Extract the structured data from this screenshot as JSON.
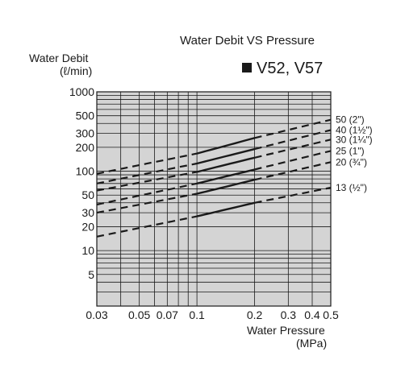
{
  "header": {
    "title": "Water Debit VS Pressure",
    "subtitle": "V52, V57"
  },
  "axes": {
    "ylabel_line1": "Water Debit",
    "ylabel_line2": "(ℓ/min)",
    "xlabel_line1": "Water Pressure",
    "xlabel_line2": "(MPa)"
  },
  "chart_data": {
    "type": "line",
    "title": "Water Debit VS Pressure",
    "subtitle": "V52, V57",
    "xlabel": "Water Pressure (MPa)",
    "ylabel": "Water Debit (ℓ/min)",
    "xscale": "log",
    "yscale": "log",
    "xlim": [
      0.03,
      0.5
    ],
    "ylim": [
      2,
      1000
    ],
    "grid": true,
    "background": "#d4d4d4",
    "x_ticks": [
      {
        "v": 0.03,
        "label": "0.03"
      },
      {
        "v": 0.05,
        "label": "0.05"
      },
      {
        "v": 0.07,
        "label": "0.07"
      },
      {
        "v": 0.1,
        "label": "0.1"
      },
      {
        "v": 0.2,
        "label": "0.2"
      },
      {
        "v": 0.3,
        "label": "0.3"
      },
      {
        "v": 0.4,
        "label": "0.4"
      },
      {
        "v": 0.5,
        "label": "0.5"
      }
    ],
    "y_ticks": [
      {
        "v": 5,
        "label": "5"
      },
      {
        "v": 10,
        "label": "10"
      },
      {
        "v": 20,
        "label": "20"
      },
      {
        "v": 30,
        "label": "30"
      },
      {
        "v": 50,
        "label": "50"
      },
      {
        "v": 100,
        "label": "100"
      },
      {
        "v": 200,
        "label": "200"
      },
      {
        "v": 300,
        "label": "300"
      },
      {
        "v": 500,
        "label": "500"
      },
      {
        "v": 1000,
        "label": "1000"
      }
    ],
    "x_grid": [
      0.03,
      0.04,
      0.05,
      0.06,
      0.07,
      0.08,
      0.09,
      0.1,
      0.2,
      0.3,
      0.4,
      0.5
    ],
    "y_grid": [
      3,
      4,
      5,
      6,
      7,
      8,
      9,
      10,
      20,
      30,
      40,
      50,
      60,
      70,
      80,
      90,
      100,
      200,
      300,
      400,
      500,
      600,
      700,
      800,
      900,
      1000
    ],
    "solid_range": [
      0.1,
      0.2
    ],
    "series": [
      {
        "name": "50 (2\")",
        "points": [
          [
            0.03,
            93
          ],
          [
            0.1,
            167
          ],
          [
            0.2,
            262
          ],
          [
            0.5,
            445
          ]
        ]
      },
      {
        "name": "40 (1½\")",
        "points": [
          [
            0.03,
            70
          ],
          [
            0.1,
            125
          ],
          [
            0.2,
            190
          ],
          [
            0.5,
            330
          ]
        ]
      },
      {
        "name": "30 (1¼\")",
        "points": [
          [
            0.03,
            57
          ],
          [
            0.1,
            98
          ],
          [
            0.2,
            148
          ],
          [
            0.5,
            250
          ]
        ]
      },
      {
        "name": "25 (1\")",
        "points": [
          [
            0.03,
            38
          ],
          [
            0.1,
            70
          ],
          [
            0.2,
            105
          ],
          [
            0.5,
            180
          ]
        ]
      },
      {
        "name": "20 (¾\")",
        "points": [
          [
            0.03,
            30
          ],
          [
            0.1,
            52
          ],
          [
            0.2,
            78
          ],
          [
            0.5,
            130
          ]
        ]
      },
      {
        "name": "13 (½\")",
        "points": [
          [
            0.03,
            15
          ],
          [
            0.1,
            27
          ],
          [
            0.2,
            40
          ],
          [
            0.5,
            62
          ]
        ]
      }
    ]
  }
}
